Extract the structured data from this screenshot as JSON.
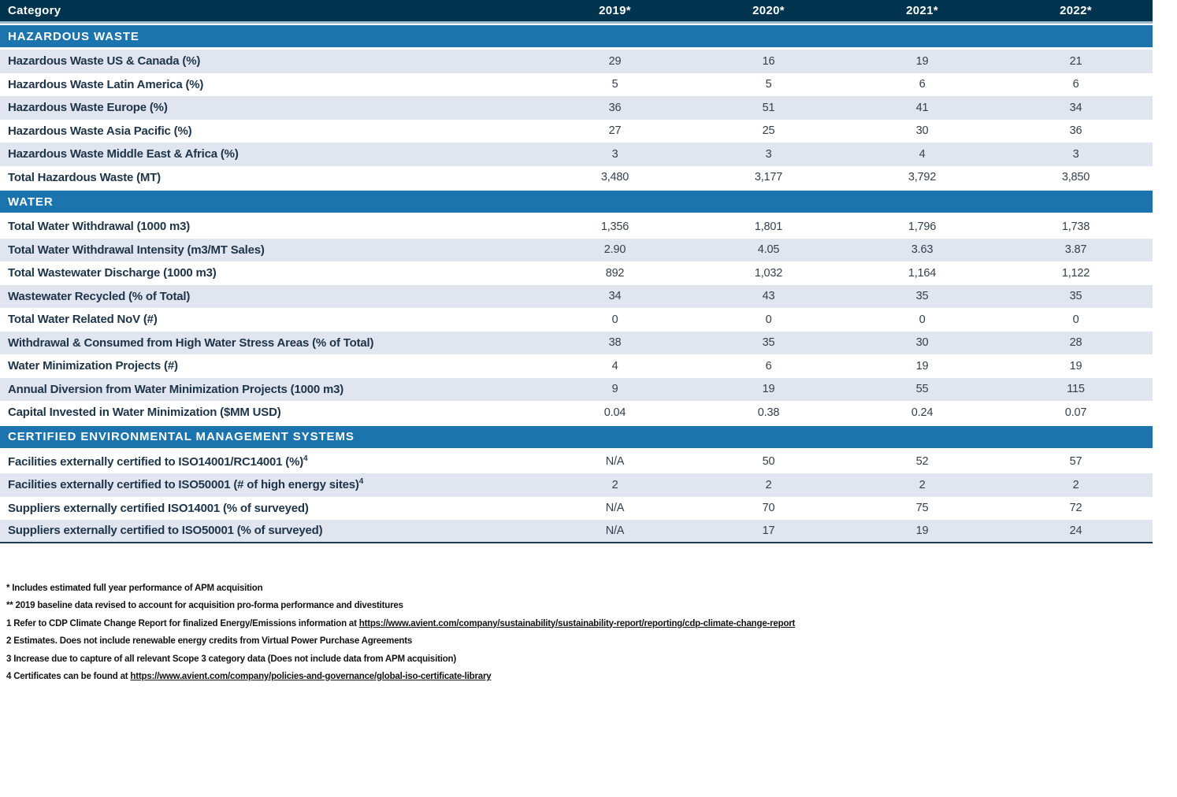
{
  "table": {
    "header": {
      "category_label": "Category",
      "year_columns": [
        "2019*",
        "2020*",
        "2021*",
        "2022*"
      ]
    },
    "sections": [
      {
        "title": "HAZARDOUS WASTE",
        "rows": [
          {
            "label": "Hazardous Waste US & Canada (%)",
            "sup": "",
            "values": [
              "29",
              "16",
              "19",
              "21"
            ]
          },
          {
            "label": "Hazardous Waste Latin America (%)",
            "sup": "",
            "values": [
              "5",
              "5",
              "6",
              "6"
            ]
          },
          {
            "label": "Hazardous Waste Europe (%)",
            "sup": "",
            "values": [
              "36",
              "51",
              "41",
              "34"
            ]
          },
          {
            "label": "Hazardous Waste Asia Pacific (%)",
            "sup": "",
            "values": [
              "27",
              "25",
              "30",
              "36"
            ]
          },
          {
            "label": "Hazardous Waste Middle East & Africa (%)",
            "sup": "",
            "values": [
              "3",
              "3",
              "4",
              "3"
            ]
          },
          {
            "label": "Total Hazardous Waste (MT)",
            "sup": "",
            "values": [
              "3,480",
              "3,177",
              "3,792",
              "3,850"
            ]
          }
        ]
      },
      {
        "title": "WATER",
        "rows": [
          {
            "label": "Total Water Withdrawal (1000 m3)",
            "sup": "",
            "values": [
              "1,356",
              "1,801",
              "1,796",
              "1,738"
            ]
          },
          {
            "label": "Total Water Withdrawal Intensity (m3/MT Sales)",
            "sup": "",
            "values": [
              "2.90",
              "4.05",
              "3.63",
              "3.87"
            ]
          },
          {
            "label": "Total Wastewater Discharge (1000 m3)",
            "sup": "",
            "values": [
              "892",
              "1,032",
              "1,164",
              "1,122"
            ]
          },
          {
            "label": "Wastewater Recycled (% of Total)",
            "sup": "",
            "values": [
              "34",
              "43",
              "35",
              "35"
            ]
          },
          {
            "label": "Total Water Related NoV (#)",
            "sup": "",
            "values": [
              "0",
              "0",
              "0",
              "0"
            ]
          },
          {
            "label": "Withdrawal & Consumed from High Water Stress Areas (% of Total)",
            "sup": "",
            "values": [
              "38",
              "35",
              "30",
              "28"
            ]
          },
          {
            "label": "Water Minimization Projects (#)",
            "sup": "",
            "values": [
              "4",
              "6",
              "19",
              "19"
            ]
          },
          {
            "label": "Annual Diversion from Water Minimization Projects (1000 m3)",
            "sup": "",
            "values": [
              "9",
              "19",
              "55",
              "115"
            ]
          },
          {
            "label": "Capital Invested in Water Minimization ($MM USD)",
            "sup": "",
            "values": [
              "0.04",
              "0.38",
              "0.24",
              "0.07"
            ]
          }
        ]
      },
      {
        "title": "CERTIFIED ENVIRONMENTAL MANAGEMENT SYSTEMS",
        "rows": [
          {
            "label": "Facilities externally certified to ISO14001/RC14001 (%)",
            "sup": "4",
            "values": [
              "N/A",
              "50",
              "52",
              "57"
            ]
          },
          {
            "label": "Facilities externally certified to ISO50001 (# of high energy sites)",
            "sup": "4",
            "values": [
              "2",
              "2",
              "2",
              "2"
            ]
          },
          {
            "label": "Suppliers externally certified ISO14001 (% of surveyed)",
            "sup": "",
            "values": [
              "N/A",
              "70",
              "75",
              "72"
            ]
          },
          {
            "label": "Suppliers externally certified to ISO50001 (% of surveyed)",
            "sup": "",
            "values": [
              "N/A",
              "17",
              "19",
              "24"
            ]
          }
        ]
      }
    ]
  },
  "footnotes": [
    {
      "text": "* Includes estimated full year performance of APM acquisition",
      "link": ""
    },
    {
      "text": "** 2019 baseline data revised to account for acquisition pro-forma performance and divestitures",
      "link": ""
    },
    {
      "text": "1 Refer to CDP Climate Change Report for finalized Energy/Emissions information at ",
      "link": "https://www.avient.com/company/sustainability/sustainability-report/reporting/cdp-climate-change-report"
    },
    {
      "text": "2 Estimates. Does not include renewable energy credits from Virtual Power Purchase Agreements",
      "link": ""
    },
    {
      "text": "3 Increase due to capture of all relevant Scope 3 category data (Does not include data from APM acquisition)",
      "link": ""
    },
    {
      "text": "4 Certificates can be found at ",
      "link": "https://www.avient.com/company/policies-and-governance/global-iso-certificate-library"
    }
  ],
  "colors": {
    "header_bg": "#00344E",
    "section_bg": "#1B74AE",
    "row_alt_bg": "#E0E5F0",
    "label_color": "#1E3448",
    "value_color": "#333F4A",
    "separator": "#9BB8CE",
    "bottom_border": "#1C3A52"
  }
}
